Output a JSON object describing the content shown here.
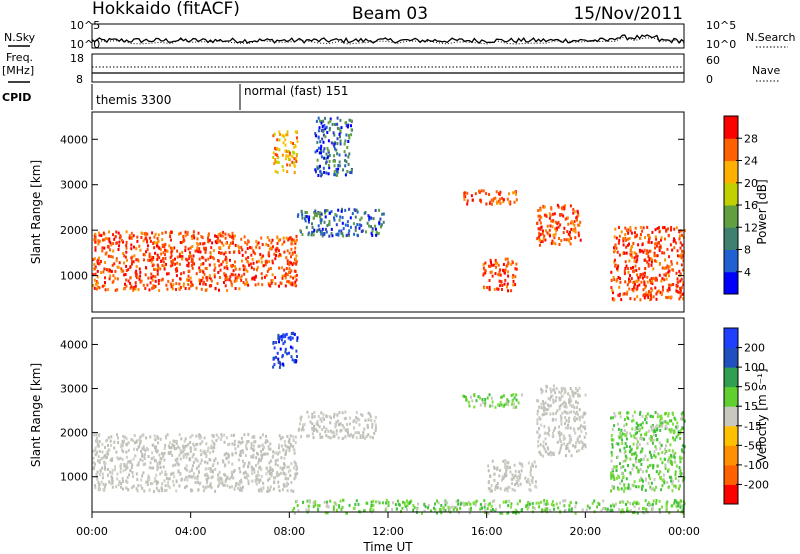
{
  "header": {
    "radar": "Hokkaido (fitACF)",
    "beam": "Beam 03",
    "date": "15/Nov/2011"
  },
  "panels": {
    "nsky": {
      "left_label": "N.Sky",
      "right_label": "N.Search",
      "left_ticks": [
        "10^5",
        "10^0"
      ],
      "right_ticks": [
        "10^5",
        "10^0"
      ]
    },
    "freq": {
      "left_label_1": "Freq.",
      "left_label_2": "[MHz]",
      "right_label": "Nave",
      "left_ticks": [
        "18",
        "8"
      ],
      "right_ticks": [
        "60",
        "0"
      ]
    },
    "cpid": {
      "label": "CPID",
      "modes": [
        "themis 3300",
        "normal (fast) 151"
      ]
    }
  },
  "chart_data": [
    {
      "type": "heatmap",
      "name": "power",
      "ylabel": "Slant Range [km]",
      "xlabel": "Time UT",
      "y_ticks": [
        "1000",
        "2000",
        "3000",
        "4000"
      ],
      "ylim": [
        200,
        4600
      ],
      "x_ticks": [
        "00:00",
        "04:00",
        "08:00",
        "12:00",
        "16:00",
        "20:00",
        "00:00"
      ],
      "xlim_hours": [
        0,
        24
      ],
      "colorbar": {
        "label": "Power [dB]",
        "ticks": [
          "28",
          "24",
          "20",
          "16",
          "12",
          "8",
          "4"
        ],
        "colors": [
          "#0000ff",
          "#2060d0",
          "#408070",
          "#60a040",
          "#c0d000",
          "#ffb000",
          "#ff6000",
          "#ff0000"
        ]
      },
      "regions": [
        {
          "t0": 0.0,
          "t1": 6.0,
          "r0": 700,
          "r1": 2000,
          "level": "high"
        },
        {
          "t0": 6.0,
          "t1": 8.3,
          "r0": 800,
          "r1": 1900,
          "level": "high"
        },
        {
          "t0": 7.3,
          "t1": 8.3,
          "r0": 3300,
          "r1": 4200,
          "level": "mid"
        },
        {
          "t0": 8.3,
          "t1": 11.8,
          "r0": 1900,
          "r1": 2500,
          "level": "low"
        },
        {
          "t0": 9.0,
          "t1": 10.5,
          "r0": 3200,
          "r1": 4500,
          "level": "low"
        },
        {
          "t0": 15.0,
          "t1": 17.3,
          "r0": 2600,
          "r1": 2900,
          "level": "high"
        },
        {
          "t0": 15.8,
          "t1": 17.2,
          "r0": 700,
          "r1": 1400,
          "level": "high"
        },
        {
          "t0": 18.0,
          "t1": 19.8,
          "r0": 1700,
          "r1": 2600,
          "level": "high"
        },
        {
          "t0": 21.0,
          "t1": 24.0,
          "r0": 500,
          "r1": 2100,
          "level": "high"
        }
      ]
    },
    {
      "type": "heatmap",
      "name": "velocity",
      "ylabel": "Slant Range [km]",
      "xlabel": "Time UT",
      "y_ticks": [
        "1000",
        "2000",
        "3000",
        "4000"
      ],
      "ylim": [
        200,
        4600
      ],
      "x_ticks": [
        "00:00",
        "04:00",
        "08:00",
        "12:00",
        "16:00",
        "20:00",
        "00:00"
      ],
      "xlim_hours": [
        0,
        24
      ],
      "colorbar": {
        "label": "Velocity [m s⁻¹]",
        "ticks": [
          "200",
          "100",
          "50",
          "15",
          "-15",
          "-50",
          "-100",
          "-200"
        ],
        "colors": [
          "#ff0000",
          "#ff6000",
          "#ff9000",
          "#ffc000",
          "#c8c8c0",
          "#60d030",
          "#30a050",
          "#2050c0",
          "#2040ff"
        ]
      },
      "regions": [
        {
          "t0": 0.0,
          "t1": 8.3,
          "r0": 700,
          "r1": 2000,
          "level": "gray"
        },
        {
          "t0": 7.3,
          "t1": 8.3,
          "r0": 3500,
          "r1": 4300,
          "level": "blue"
        },
        {
          "t0": 8.3,
          "t1": 11.5,
          "r0": 1900,
          "r1": 2500,
          "level": "gray"
        },
        {
          "t0": 15.0,
          "t1": 17.5,
          "r0": 2600,
          "r1": 2900,
          "level": "green"
        },
        {
          "t0": 16.0,
          "t1": 18.0,
          "r0": 700,
          "r1": 1400,
          "level": "gray"
        },
        {
          "t0": 18.0,
          "t1": 20.0,
          "r0": 1500,
          "r1": 3100,
          "level": "gray"
        },
        {
          "t0": 21.0,
          "t1": 24.0,
          "r0": 700,
          "r1": 2500,
          "level": "green"
        },
        {
          "t0": 8.0,
          "t1": 24.0,
          "r0": 200,
          "r1": 500,
          "level": "green"
        }
      ]
    }
  ]
}
